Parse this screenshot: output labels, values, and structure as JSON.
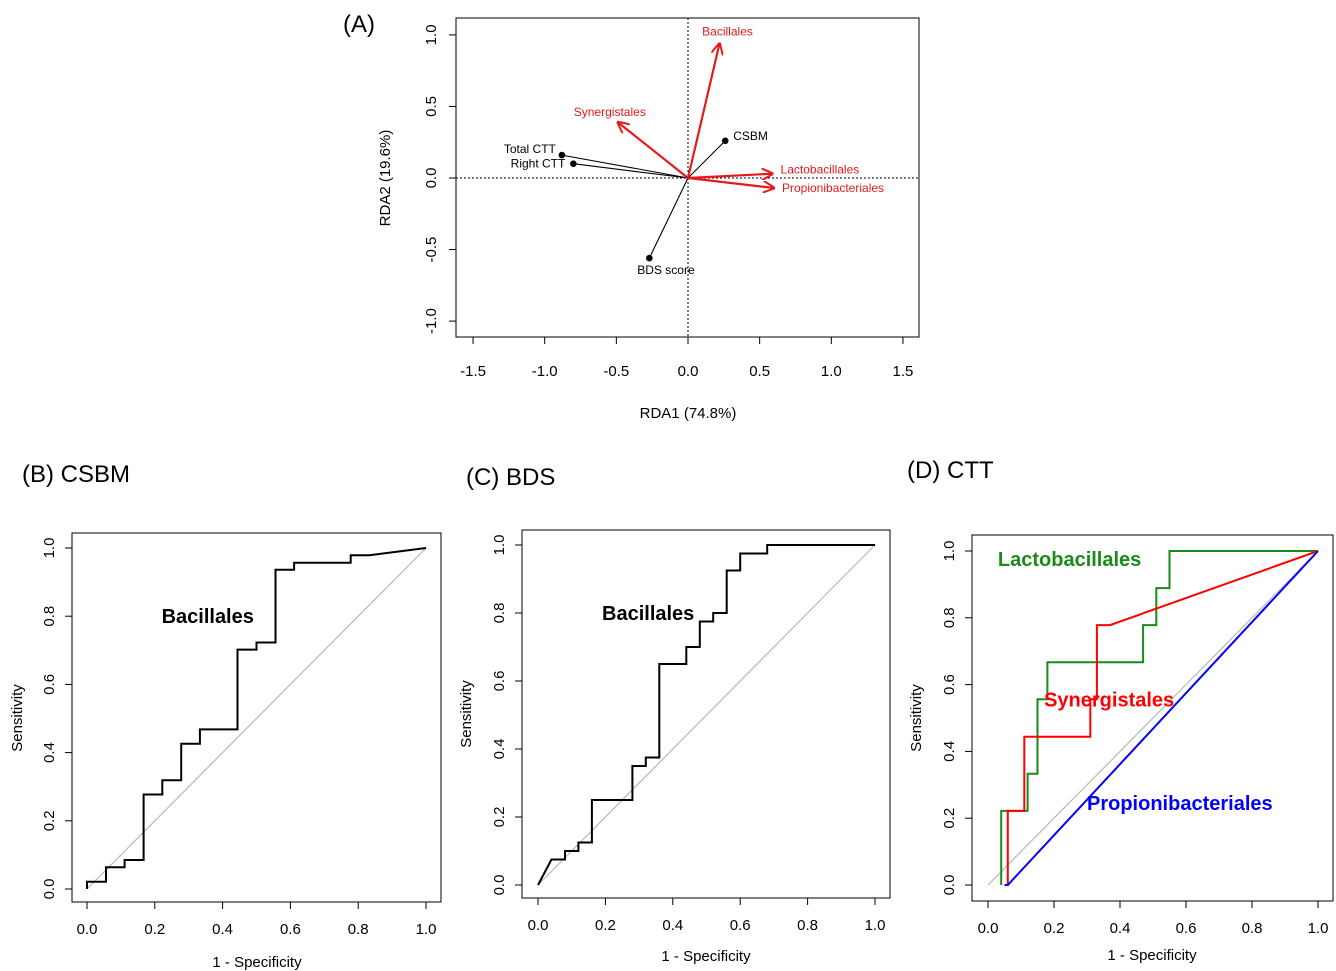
{
  "colors": {
    "axis": "#000000",
    "species": "#e41a1c",
    "env": "#000000",
    "diag": "#b8b8b8",
    "green": "#1a8a1a",
    "red": "#ff0000",
    "blue": "#0000ff"
  },
  "chart_data": [
    {
      "id": "A",
      "type": "scatter",
      "panel_label": "(A)",
      "xlabel": "RDA1 (74.8%)",
      "ylabel": "RDA2 (19.6%)",
      "xlim": [
        -1.5,
        1.5
      ],
      "ylim": [
        -1.0,
        1.0
      ],
      "xticks": [
        -1.5,
        -1.0,
        -0.5,
        0.0,
        0.5,
        1.0,
        1.5
      ],
      "yticks": [
        -1.0,
        -0.5,
        0.0,
        0.5,
        1.0
      ],
      "xtick_labels": [
        "-1.5",
        "-1.0",
        "-0.5",
        "0.0",
        "0.5",
        "1.0",
        "1.5"
      ],
      "ytick_labels": [
        "-1.0",
        "-0.5",
        "0.0",
        "0.5",
        "1.0"
      ],
      "species_arrows": [
        {
          "name": "Bacillales",
          "x": 0.22,
          "y": 0.94
        },
        {
          "name": "Synergistales",
          "x": -0.49,
          "y": 0.39
        },
        {
          "name": "Lactobacillales",
          "x": 0.59,
          "y": 0.03
        },
        {
          "name": "Propionibacteriales",
          "x": 0.6,
          "y": -0.07
        }
      ],
      "env_points": [
        {
          "name": "CSBM",
          "x": 0.26,
          "y": 0.26
        },
        {
          "name": "Total CTT",
          "x": -0.88,
          "y": 0.16
        },
        {
          "name": "Right CTT",
          "x": -0.8,
          "y": 0.1
        },
        {
          "name": "BDS score",
          "x": -0.27,
          "y": -0.56
        }
      ]
    },
    {
      "id": "B",
      "type": "line",
      "panel_label": "(B) CSBM",
      "xlabel": "1 - Specificity",
      "ylabel": "Sensitivity",
      "xlim": [
        0,
        1
      ],
      "ylim": [
        0,
        1
      ],
      "xticks": [
        0.0,
        0.2,
        0.4,
        0.6,
        0.8,
        1.0
      ],
      "yticks": [
        0.0,
        0.2,
        0.4,
        0.6,
        0.8,
        1.0
      ],
      "xtick_labels": [
        "0.0",
        "0.2",
        "0.4",
        "0.6",
        "0.8",
        "1.0"
      ],
      "ytick_labels": [
        "0.0",
        "0.2",
        "0.4",
        "0.6",
        "0.8",
        "1.0"
      ],
      "series": [
        {
          "name": "Bacillales",
          "color": "#000000",
          "x": [
            0,
            0,
            0.056,
            0.056,
            0.111,
            0.111,
            0.167,
            0.167,
            0.222,
            0.222,
            0.278,
            0.278,
            0.333,
            0.333,
            0.444,
            0.444,
            0.5,
            0.5,
            0.556,
            0.556,
            0.611,
            0.611,
            0.778,
            0.778,
            0.833,
            1
          ],
          "y": [
            0,
            0.021,
            0.021,
            0.064,
            0.064,
            0.085,
            0.085,
            0.277,
            0.277,
            0.319,
            0.319,
            0.426,
            0.426,
            0.468,
            0.468,
            0.702,
            0.702,
            0.723,
            0.723,
            0.936,
            0.936,
            0.957,
            0.957,
            0.979,
            0.979,
            1
          ]
        }
      ],
      "series_label": {
        "text": "Bacillales",
        "x": 0.22,
        "y": 0.78,
        "color": "#000000"
      }
    },
    {
      "id": "C",
      "type": "line",
      "panel_label": "(C) BDS",
      "xlabel": "1 - Specificity",
      "ylabel": "Sensitivity",
      "xlim": [
        0,
        1
      ],
      "ylim": [
        0,
        1
      ],
      "xticks": [
        0.0,
        0.2,
        0.4,
        0.6,
        0.8,
        1.0
      ],
      "yticks": [
        0.0,
        0.2,
        0.4,
        0.6,
        0.8,
        1.0
      ],
      "xtick_labels": [
        "0.0",
        "0.2",
        "0.4",
        "0.6",
        "0.8",
        "1.0"
      ],
      "ytick_labels": [
        "0.0",
        "0.2",
        "0.4",
        "0.6",
        "0.8",
        "1.0"
      ],
      "series": [
        {
          "name": "Bacillales",
          "color": "#000000",
          "x": [
            0,
            0.04,
            0.08,
            0.08,
            0.12,
            0.12,
            0.16,
            0.16,
            0.28,
            0.28,
            0.32,
            0.32,
            0.36,
            0.36,
            0.44,
            0.44,
            0.48,
            0.48,
            0.52,
            0.52,
            0.56,
            0.56,
            0.6,
            0.6,
            0.68,
            0.68,
            1
          ],
          "y": [
            0,
            0.075,
            0.075,
            0.1,
            0.1,
            0.125,
            0.125,
            0.25,
            0.25,
            0.35,
            0.35,
            0.375,
            0.375,
            0.65,
            0.65,
            0.7,
            0.7,
            0.775,
            0.775,
            0.8,
            0.8,
            0.925,
            0.925,
            0.975,
            0.975,
            1,
            1
          ]
        }
      ],
      "series_label": {
        "text": "Bacillales",
        "x": 0.19,
        "y": 0.78,
        "color": "#000000"
      }
    },
    {
      "id": "D",
      "type": "line",
      "panel_label": "(D) CTT",
      "xlabel": "1 - Specificity",
      "ylabel": "Sensitivity",
      "xlim": [
        0,
        1
      ],
      "ylim": [
        0,
        1
      ],
      "xticks": [
        0.0,
        0.2,
        0.4,
        0.6,
        0.8,
        1.0
      ],
      "yticks": [
        0.0,
        0.2,
        0.4,
        0.6,
        0.8,
        1.0
      ],
      "xtick_labels": [
        "0.0",
        "0.2",
        "0.4",
        "0.6",
        "0.8",
        "1.0"
      ],
      "ytick_labels": [
        "0.0",
        "0.2",
        "0.4",
        "0.6",
        "0.8",
        "1.0"
      ],
      "series": [
        {
          "name": "Lactobacillales",
          "color": "#1a8a1a",
          "x": [
            0.04,
            0.04,
            0.06,
            0.06,
            0.12,
            0.12,
            0.15,
            0.15,
            0.18,
            0.18,
            0.47,
            0.47,
            0.51,
            0.51,
            0.55,
            0.55,
            1
          ],
          "y": [
            0,
            0.222,
            0.222,
            0.222,
            0.222,
            0.333,
            0.333,
            0.556,
            0.556,
            0.667,
            0.667,
            0.778,
            0.778,
            0.889,
            0.889,
            1,
            1
          ]
        },
        {
          "name": "Synergistales",
          "color": "#ff0000",
          "x": [
            0.05,
            0.06,
            0.06,
            0.11,
            0.11,
            0.31,
            0.31,
            0.33,
            0.33,
            0.37,
            1
          ],
          "y": [
            0,
            0,
            0.222,
            0.222,
            0.444,
            0.444,
            0.556,
            0.556,
            0.778,
            0.778,
            1
          ]
        },
        {
          "name": "Propionibacteriales",
          "color": "#0000ff",
          "x": [
            0.05,
            0.06,
            1
          ],
          "y": [
            0,
            0,
            1
          ]
        }
      ],
      "series_labels": [
        {
          "text": "Lactobacillales",
          "x": 0.03,
          "y": 0.955,
          "color": "#1a8a1a"
        },
        {
          "text": "Synergistales",
          "x": 0.17,
          "y": 0.535,
          "color": "#ff0000"
        },
        {
          "text": "Propionibacteriales",
          "x": 0.3,
          "y": 0.225,
          "color": "#0000ff"
        }
      ]
    }
  ]
}
